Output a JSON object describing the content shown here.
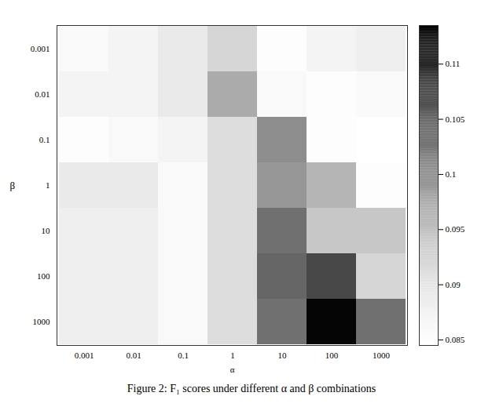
{
  "chart_data": {
    "type": "heatmap",
    "title": "Figure 2: F₁ scores under different α and β combinations",
    "x_label": "α",
    "y_label": "β",
    "x_categories": [
      0.001,
      0.01,
      0.1,
      1,
      10,
      100,
      1000
    ],
    "y_categories": [
      0.001,
      0.01,
      0.1,
      1,
      10,
      100,
      1000
    ],
    "cells": [
      [
        0.086,
        0.087,
        0.089,
        0.092,
        0.085,
        0.087,
        0.088
      ],
      [
        0.087,
        0.087,
        0.089,
        0.097,
        0.086,
        0.085,
        0.086
      ],
      [
        0.085,
        0.086,
        0.087,
        0.091,
        0.1,
        0.085,
        0.0845
      ],
      [
        0.089,
        0.089,
        0.086,
        0.091,
        0.099,
        0.096,
        0.085
      ],
      [
        0.088,
        0.088,
        0.086,
        0.091,
        0.103,
        0.094,
        0.094
      ],
      [
        0.088,
        0.088,
        0.086,
        0.091,
        0.104,
        0.107,
        0.092
      ],
      [
        0.088,
        0.088,
        0.086,
        0.091,
        0.103,
        0.113,
        0.103
      ]
    ],
    "colorbar_range": [
      0.0845,
      0.1135
    ],
    "colorbar_ticks": [
      0.085,
      0.09,
      0.095,
      0.1,
      0.105,
      0.11
    ]
  }
}
